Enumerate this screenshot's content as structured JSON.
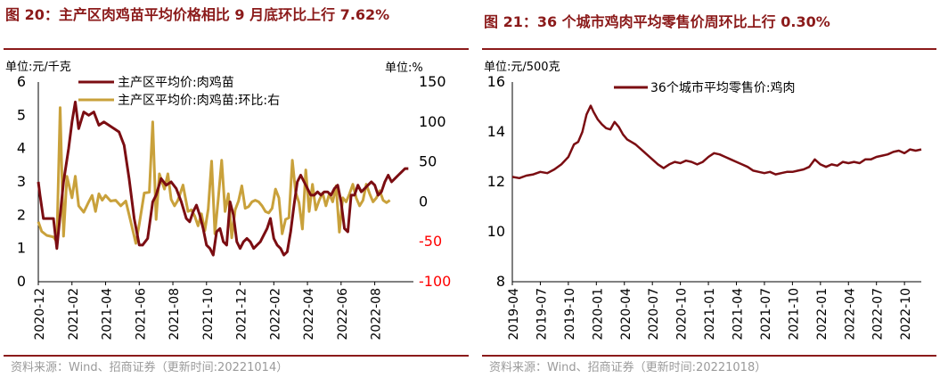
{
  "charts": [
    {
      "title": "图 20：主产区肉鸡苗平均价格相比 9 月底环比上行 7.62%",
      "source": "资料来源：Wind、招商证券（更新时间:20221014）",
      "chart_data": {
        "type": "line",
        "y_left_unit": "单位:元/千克",
        "y_right_unit": "单位:%",
        "ylim_left": [
          0,
          6
        ],
        "yticks_left": [
          "0",
          "1",
          "2",
          "3",
          "4",
          "5",
          "6"
        ],
        "ylim_right": [
          -100,
          150
        ],
        "yticks_right": [
          "-100",
          "-50",
          "0",
          "50",
          "100",
          "150"
        ],
        "negative_tick_color": "#ff0000",
        "x_range": [
          0,
          22.3
        ],
        "x_ticks": [
          "2020-12",
          "2021-02",
          "2021-04",
          "2021-06",
          "2021-08",
          "2021-10",
          "2021-12",
          "2022-02",
          "2022-04",
          "2022-06",
          "2022-08"
        ],
        "legend_position": "top-center",
        "series": [
          {
            "name": "主产区平均价:肉鸡苗",
            "axis": "left",
            "color": "#7B0D12",
            "x": [
              0,
              0.1,
              0.3,
              0.6,
              0.9,
              1.1,
              1.3,
              1.5,
              1.8,
              2.0,
              2.2,
              2.4,
              2.7,
              3.0,
              3.3,
              3.6,
              3.9,
              4.2,
              4.5,
              4.8,
              5.1,
              5.4,
              5.7,
              6.0,
              6.2,
              6.5,
              6.8,
              7.0,
              7.3,
              7.6,
              7.9,
              8.2,
              8.5,
              8.8,
              9.0,
              9.2,
              9.4,
              9.6,
              9.8,
              10.0,
              10.2,
              10.4,
              10.6,
              10.8,
              11.0,
              11.2,
              11.4,
              11.6,
              11.8,
              12.0,
              12.2,
              12.4,
              12.6,
              12.8,
              13.0,
              13.2,
              13.4,
              13.6,
              13.8,
              14.0,
              14.2,
              14.4,
              14.6,
              14.8,
              15.0,
              15.2,
              15.4,
              15.6,
              15.8,
              16.0,
              16.2,
              16.4,
              16.6,
              16.8,
              17.0,
              17.2,
              17.4,
              17.6,
              17.8,
              18.0,
              18.2,
              18.4,
              18.6,
              18.8,
              19.0,
              19.2,
              19.4,
              19.6,
              19.8,
              20.0,
              20.2,
              20.4,
              20.6,
              20.8,
              21.0,
              21.2,
              21.4,
              21.6,
              21.8,
              22.0
            ],
            "values": [
              3.0,
              2.6,
              1.9,
              1.9,
              1.9,
              1.0,
              2.0,
              3.0,
              4.0,
              4.8,
              5.4,
              4.6,
              5.1,
              5.0,
              5.1,
              4.7,
              4.8,
              4.7,
              4.6,
              4.5,
              4.1,
              3.1,
              1.9,
              1.1,
              1.1,
              1.3,
              2.4,
              2.6,
              3.1,
              2.9,
              3.0,
              2.8,
              2.4,
              1.9,
              1.8,
              2.1,
              2.3,
              2.0,
              1.6,
              1.1,
              1.0,
              0.8,
              1.5,
              1.6,
              1.2,
              1.1,
              2.4,
              2.0,
              1.2,
              1.0,
              1.2,
              1.3,
              1.2,
              1.0,
              1.1,
              1.2,
              1.4,
              1.6,
              1.9,
              1.3,
              1.1,
              1.0,
              0.8,
              0.9,
              1.5,
              2.3,
              3.0,
              3.2,
              3.0,
              2.8,
              2.6,
              2.6,
              2.7,
              2.6,
              2.7,
              2.7,
              2.6,
              2.8,
              2.9,
              2.4,
              1.6,
              1.5,
              2.6,
              2.6,
              2.9,
              2.7,
              2.8,
              2.9,
              3.0,
              2.9,
              2.6,
              2.7,
              3.0,
              3.2,
              3.0,
              3.1,
              3.2,
              3.3,
              3.4,
              3.4
            ]
          },
          {
            "name": "主产区平均价:肉鸡苗:环比:右",
            "axis": "right",
            "color": "#C9A13B",
            "x": [
              0,
              0.2,
              0.5,
              0.9,
              1.1,
              1.3,
              1.5,
              1.7,
              2.0,
              2.2,
              2.4,
              2.7,
              3.0,
              3.2,
              3.4,
              3.6,
              3.8,
              4.0,
              4.3,
              4.6,
              4.9,
              5.2,
              5.5,
              5.8,
              6.0,
              6.3,
              6.6,
              6.8,
              7.0,
              7.2,
              7.5,
              7.7,
              7.9,
              8.1,
              8.3,
              8.6,
              8.9,
              9.1,
              9.3,
              9.5,
              9.7,
              9.9,
              10.1,
              10.3,
              10.5,
              10.7,
              10.9,
              11.1,
              11.3,
              11.5,
              11.7,
              11.9,
              12.1,
              12.3,
              12.5,
              12.7,
              12.9,
              13.1,
              13.3,
              13.5,
              13.7,
              13.9,
              14.1,
              14.3,
              14.5,
              14.7,
              14.9,
              15.1,
              15.3,
              15.5,
              15.7,
              15.9,
              16.1,
              16.3,
              16.5,
              16.7,
              16.9,
              17.1,
              17.3,
              17.5,
              17.7,
              17.9,
              18.1,
              18.3,
              18.5,
              18.7,
              18.9,
              19.1,
              19.3,
              19.5,
              19.7,
              19.9,
              20.1,
              20.3,
              20.5,
              20.7,
              20.9
            ],
            "values": [
              -25,
              -37,
              -42,
              -44,
              -50,
              118,
              -43,
              32,
              5,
              32,
              -5,
              -13,
              0,
              8,
              -12,
              10,
              2,
              8,
              1,
              2,
              -5,
              1,
              -25,
              -52,
              -28,
              11,
              12,
              100,
              -22,
              35,
              16,
              35,
              3,
              -5,
              2,
              21,
              -12,
              -10,
              -18,
              -30,
              -15,
              -36,
              -9,
              51,
              -40,
              4,
              52,
              -12,
              10,
              -45,
              -10,
              1,
              20,
              -8,
              -6,
              0,
              2,
              0,
              -5,
              -12,
              -14,
              -8,
              16,
              5,
              -40,
              -22,
              -20,
              52,
              12,
              -1,
              -34,
              40,
              -12,
              22,
              -10,
              2,
              11,
              -5,
              10,
              0,
              20,
              -38,
              5,
              0,
              10,
              22,
              5,
              -5,
              2,
              22,
              10,
              0,
              5,
              14,
              2,
              -1,
              2
            ]
          }
        ]
      }
    },
    {
      "title": "图 21：36 个城市鸡肉平均零售价周环比上行 0.30%",
      "source": "资料来源：Wind、招商证券（更新时间:20221018）",
      "chart_data": {
        "type": "line",
        "y_unit": "单位:元/500克",
        "ylim": [
          8,
          16
        ],
        "yticks": [
          "8",
          "10",
          "12",
          "14",
          "16"
        ],
        "x_range": [
          0,
          14.6
        ],
        "x_ticks": [
          "2019-04",
          "2019-07",
          "2019-10",
          "2020-01",
          "2020-04",
          "2020-07",
          "2020-10",
          "2021-01",
          "2021-04",
          "2021-07",
          "2021-10",
          "2022-01",
          "2022-04",
          "2022-07",
          "2022-10"
        ],
        "legend_position": "top-center",
        "series": [
          {
            "name": "36个城市平均零售价:鸡肉",
            "axis": "left",
            "color": "#7B0D12",
            "x": [
              0,
              0.25,
              0.5,
              0.75,
              1.0,
              1.25,
              1.5,
              1.75,
              2.0,
              2.2,
              2.35,
              2.5,
              2.65,
              2.8,
              2.9,
              3.05,
              3.2,
              3.35,
              3.5,
              3.65,
              3.8,
              3.95,
              4.1,
              4.25,
              4.4,
              4.6,
              4.8,
              5.0,
              5.2,
              5.4,
              5.6,
              5.8,
              6.0,
              6.2,
              6.4,
              6.6,
              6.8,
              7.0,
              7.2,
              7.4,
              7.6,
              7.8,
              8.0,
              8.2,
              8.4,
              8.6,
              8.8,
              9.0,
              9.2,
              9.4,
              9.6,
              9.8,
              10.0,
              10.2,
              10.4,
              10.6,
              10.8,
              11.0,
              11.2,
              11.4,
              11.6,
              11.8,
              12.0,
              12.2,
              12.4,
              12.6,
              12.8,
              13.0,
              13.2,
              13.4,
              13.6,
              13.8,
              14.0,
              14.2,
              14.4,
              14.6
            ],
            "values": [
              12.2,
              12.15,
              12.25,
              12.3,
              12.4,
              12.35,
              12.5,
              12.7,
              13.0,
              13.5,
              13.6,
              14.0,
              14.7,
              15.05,
              14.8,
              14.5,
              14.3,
              14.15,
              14.1,
              14.4,
              14.2,
              13.9,
              13.7,
              13.6,
              13.5,
              13.3,
              13.1,
              12.9,
              12.7,
              12.55,
              12.7,
              12.8,
              12.75,
              12.85,
              12.8,
              12.7,
              12.8,
              13.0,
              13.15,
              13.1,
              13.0,
              12.9,
              12.8,
              12.7,
              12.6,
              12.45,
              12.4,
              12.35,
              12.4,
              12.3,
              12.35,
              12.4,
              12.4,
              12.45,
              12.5,
              12.6,
              12.9,
              12.7,
              12.6,
              12.7,
              12.65,
              12.8,
              12.75,
              12.8,
              12.75,
              12.9,
              12.9,
              13.0,
              13.05,
              13.1,
              13.2,
              13.25,
              13.15,
              13.3,
              13.25,
              13.3
            ]
          }
        ]
      }
    }
  ]
}
